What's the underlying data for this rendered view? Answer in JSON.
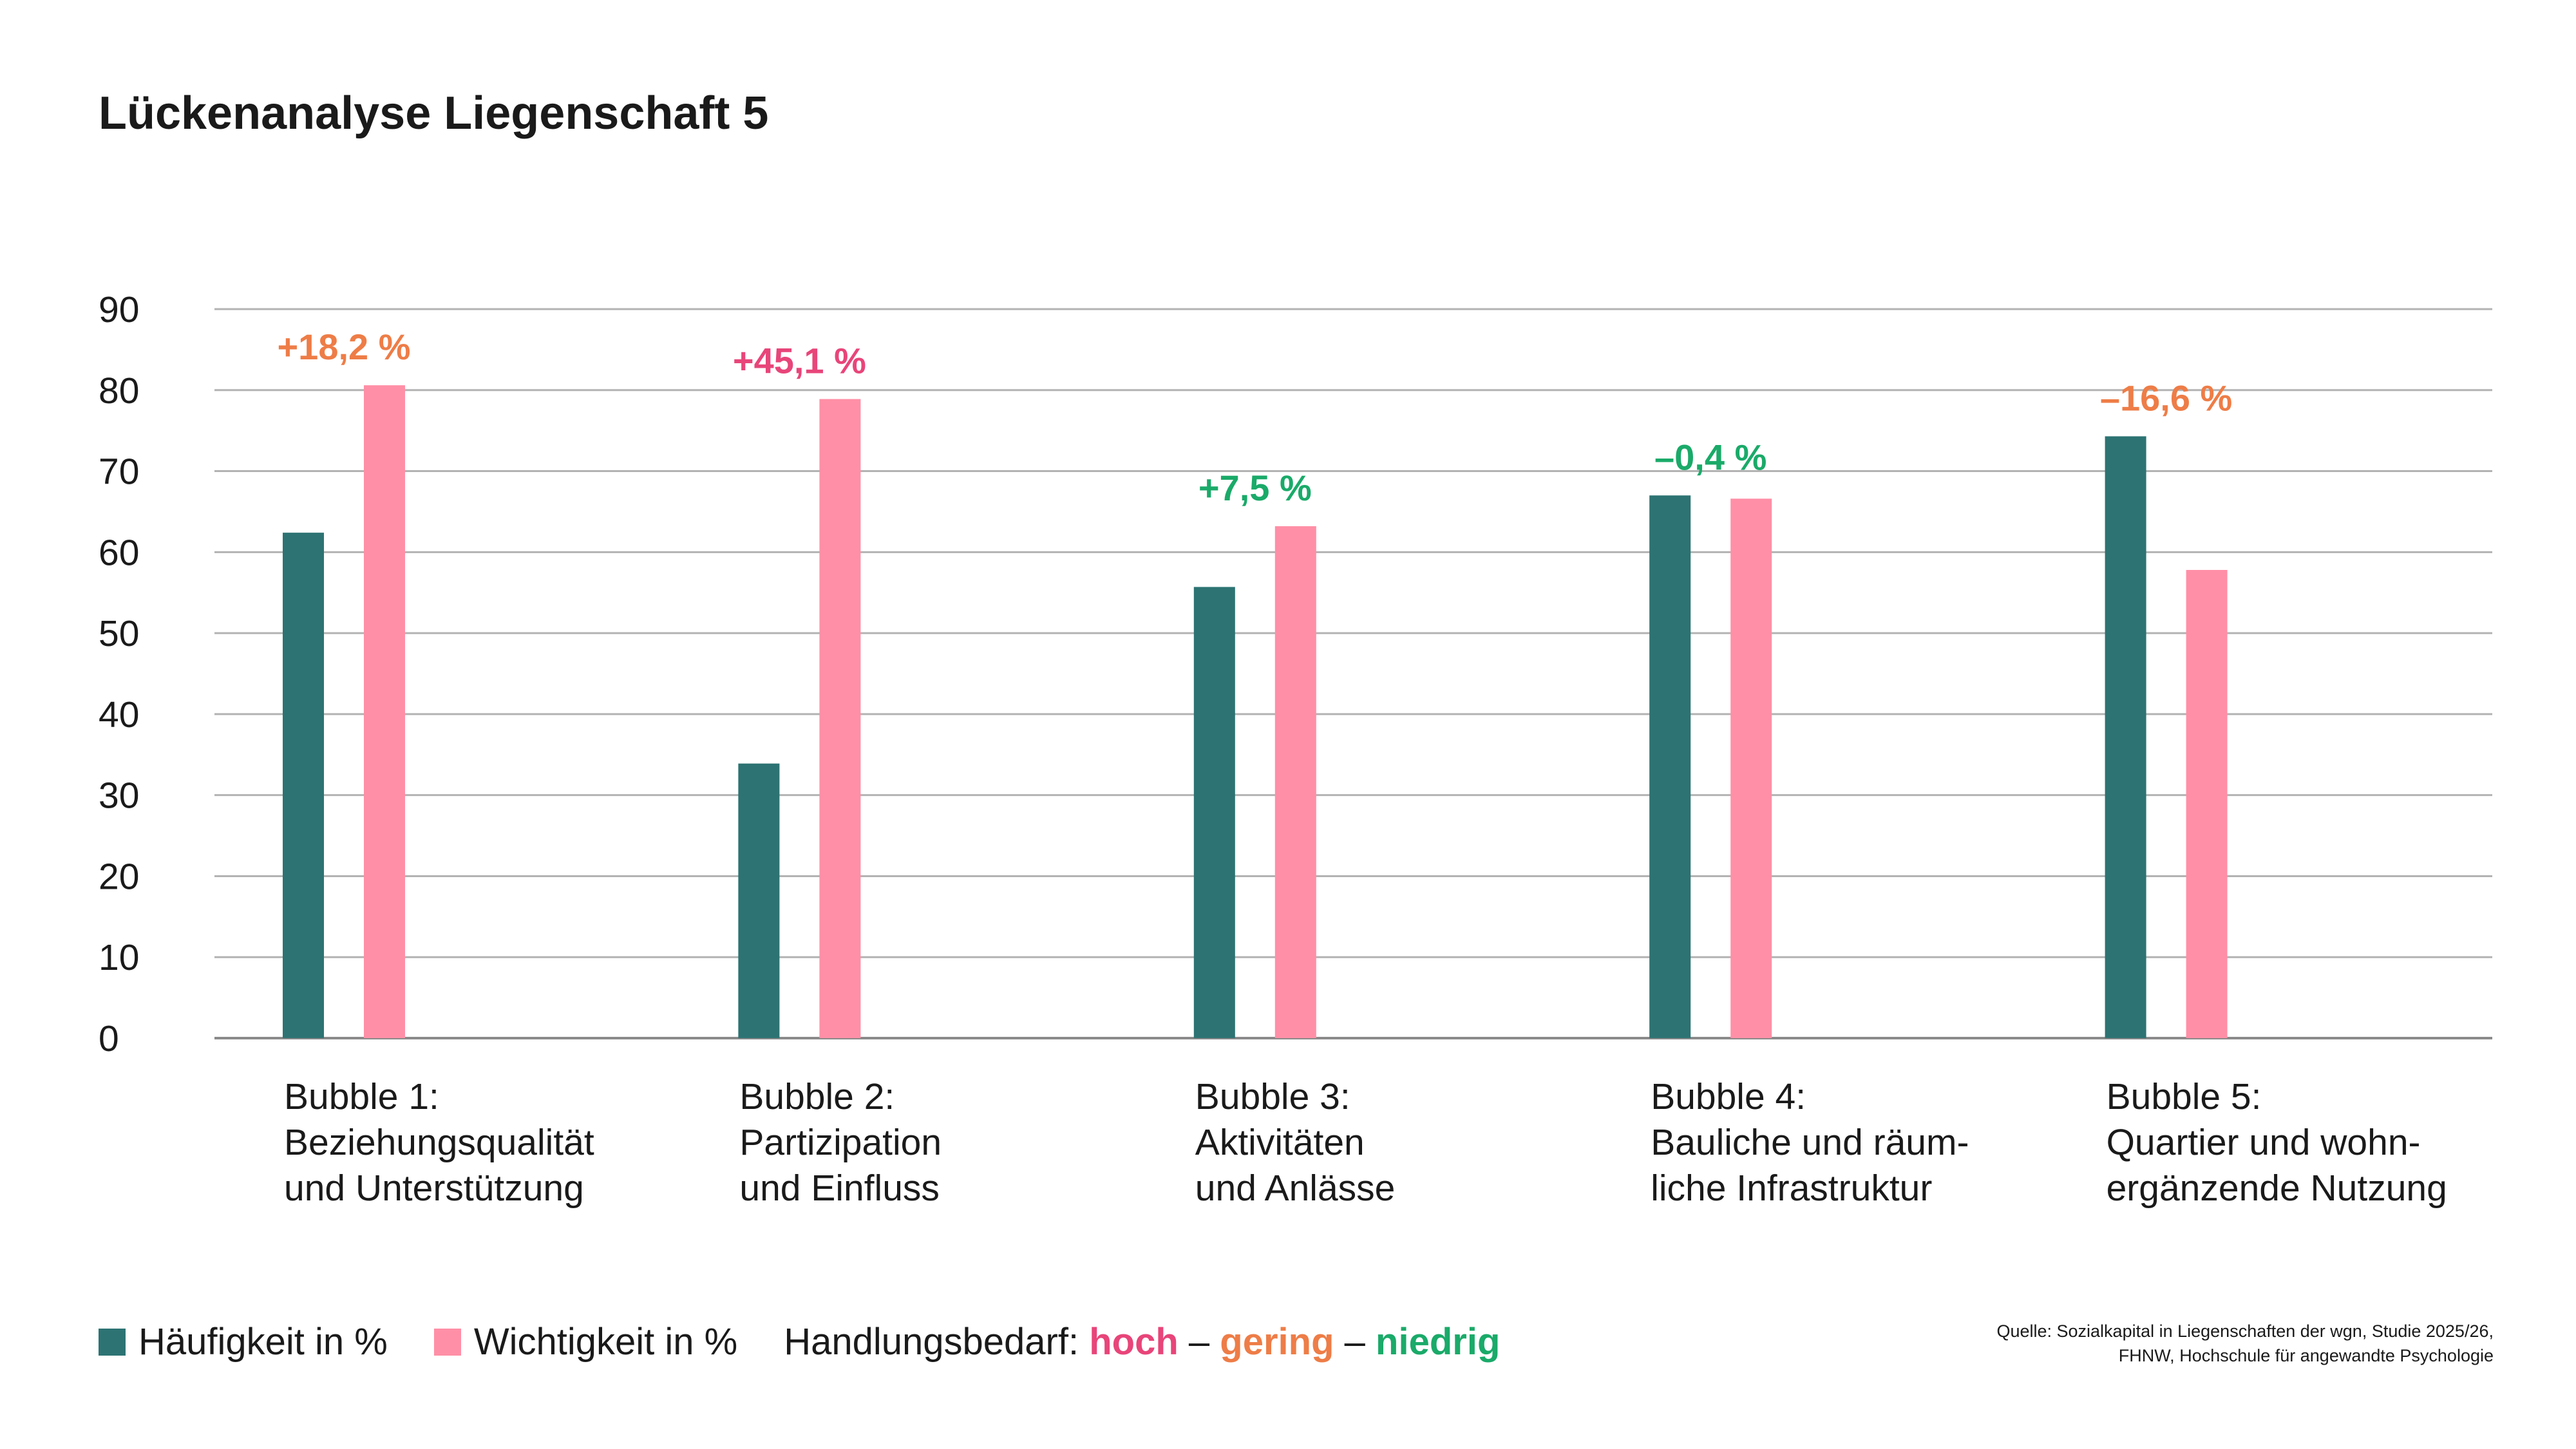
{
  "chart_data": {
    "type": "bar",
    "title": "Lückenanalyse Liegenschaft 5",
    "categories": [
      [
        "Bubble 1:",
        "Beziehungsqualität",
        "und Unterstützung"
      ],
      [
        "Bubble 2:",
        "Partizipation",
        "und Einfluss"
      ],
      [
        "Bubble 3:",
        "Aktivitäten",
        "und Anlässe"
      ],
      [
        "Bubble 4:",
        "Bauliche und räum-",
        "liche Infrastruktur"
      ],
      [
        "Bubble 5:",
        "Quartier und wohn-",
        "ergänzende Nutzung"
      ]
    ],
    "series": [
      {
        "name": "Häufigkeit in %",
        "color": "#2d7373",
        "values": [
          62.4,
          33.9,
          55.7,
          67.0,
          74.3
        ]
      },
      {
        "name": "Wichtigkeit in %",
        "color": "#ff8fa6",
        "values": [
          80.6,
          78.9,
          63.2,
          66.6,
          57.8
        ]
      }
    ],
    "annotations": [
      {
        "label": "+18,2 %",
        "level": "gering"
      },
      {
        "label": "+45,1 %",
        "level": "hoch"
      },
      {
        "label": "+7,5 %",
        "level": "niedrig"
      },
      {
        "label": "–0,4 %",
        "level": "niedrig"
      },
      {
        "label": "–16,6 %",
        "level": "gering"
      }
    ],
    "ylim": [
      0,
      90
    ],
    "yticks": [
      0,
      10,
      20,
      30,
      40,
      50,
      60,
      70,
      80,
      90
    ],
    "grid": true,
    "legend_position": "bottom-left"
  },
  "level_colors": {
    "hoch": "#e8457a",
    "gering": "#ee7d47",
    "niedrig": "#1aaa69"
  },
  "legend": {
    "series_1": "Häufigkeit in %",
    "series_2": "Wichtigkeit in %",
    "need_label": "Handlungsbedarf:",
    "need_high": "hoch",
    "need_low": "gering",
    "need_lowest": "niedrig",
    "separator": "–"
  },
  "source": {
    "line1": "Quelle: Sozialkapital in Liegenschaften der wgn, Studie 2025/26,",
    "line2": "FHNW, Hochschule für angewandte Psychologie"
  }
}
